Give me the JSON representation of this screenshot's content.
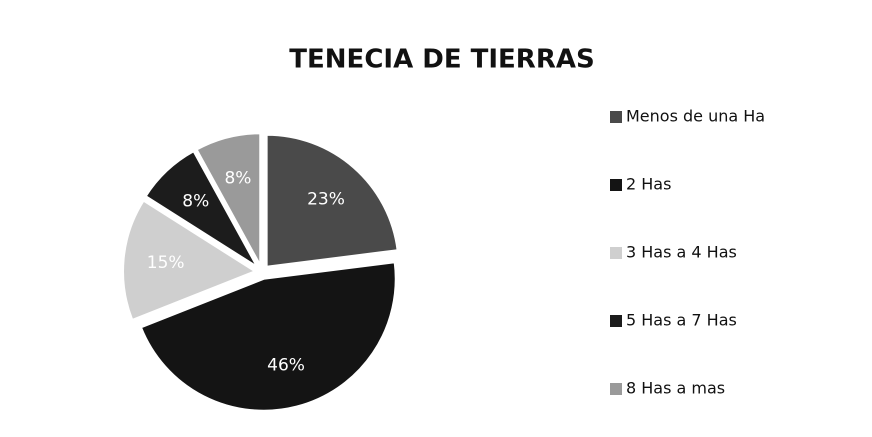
{
  "chart_data": {
    "type": "pie",
    "title": "TENECIA DE TIERRAS",
    "categories": [
      "Menos de una Ha",
      "2 Has",
      "3 Has a  4 Has",
      "5 Has a  7 Has",
      "8 Has a mas"
    ],
    "values": [
      23,
      46,
      15,
      8,
      8
    ],
    "value_labels": [
      "23%",
      "46%",
      "15%",
      "8%",
      "8%"
    ],
    "colors": [
      "#4a4a4a",
      "#141414",
      "#cfcfcf",
      "#1c1c1c",
      "#9a9a9a"
    ],
    "legend": "right"
  }
}
